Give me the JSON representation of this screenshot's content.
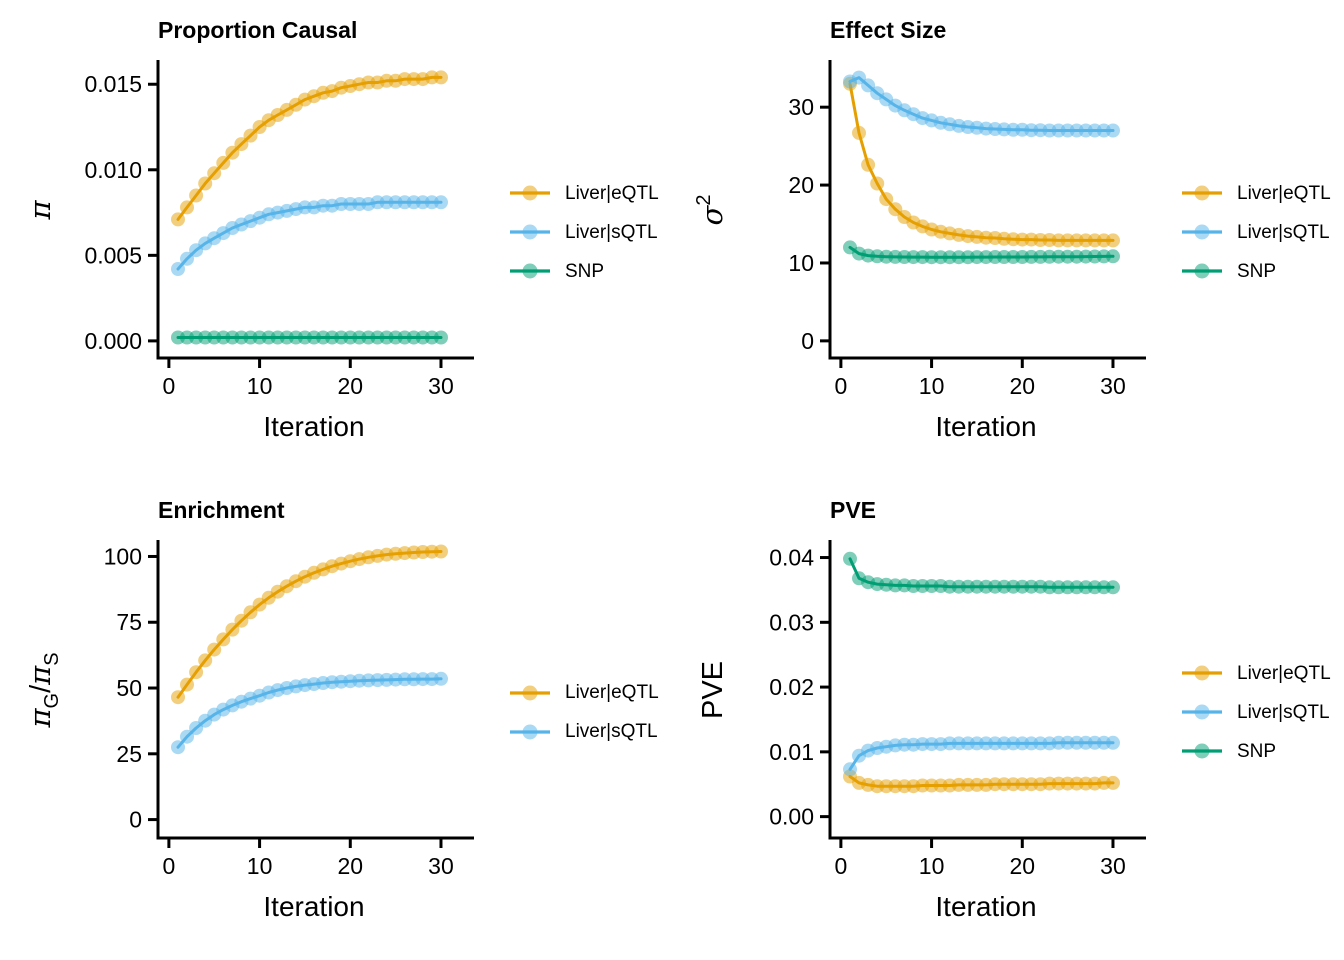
{
  "figure_background": "#ffffff",
  "palette": {
    "liver_eqtl": "#E69F00",
    "liver_sqtl": "#56B4E9",
    "snp": "#009E73",
    "axis": "#000000"
  },
  "marker": {
    "radius": 7,
    "fill_opacity": 0.5,
    "line_width": 3
  },
  "chart_data": [
    {
      "type": "line",
      "title": "Proportion Causal",
      "xlabel": "Iteration",
      "ylabel": "π",
      "ylabel_rich": [
        {
          "t": "π",
          "k": "it"
        }
      ],
      "x": [
        1,
        2,
        3,
        4,
        5,
        6,
        7,
        8,
        9,
        10,
        11,
        12,
        13,
        14,
        15,
        16,
        17,
        18,
        19,
        20,
        21,
        22,
        23,
        24,
        25,
        26,
        27,
        28,
        29,
        30
      ],
      "xticks": [
        0,
        10,
        20,
        30
      ],
      "xtick_labels": [
        "0",
        "10",
        "20",
        "30"
      ],
      "xlim": [
        -1.2,
        33.2
      ],
      "yticks": [
        0,
        0.005,
        0.01,
        0.015
      ],
      "ytick_labels": [
        "0.000",
        "0.005",
        "0.010",
        "0.015"
      ],
      "ylim": [
        -0.001,
        0.0163
      ],
      "grid": false,
      "legend_position": "right",
      "series": [
        {
          "name": "Liver|eQTL",
          "color": "#E69F00",
          "values": [
            0.0071,
            0.0078,
            0.0085,
            0.0092,
            0.0098,
            0.0104,
            0.011,
            0.0115,
            0.012,
            0.0125,
            0.0129,
            0.0132,
            0.0135,
            0.0138,
            0.0141,
            0.0143,
            0.0145,
            0.0146,
            0.0148,
            0.0149,
            0.015,
            0.0151,
            0.0151,
            0.0152,
            0.0152,
            0.0153,
            0.0153,
            0.0153,
            0.0154,
            0.0154
          ]
        },
        {
          "name": "Liver|sQTL",
          "color": "#56B4E9",
          "values": [
            0.0042,
            0.0048,
            0.0053,
            0.0057,
            0.006,
            0.0063,
            0.0066,
            0.0068,
            0.007,
            0.0072,
            0.0074,
            0.0075,
            0.0076,
            0.0077,
            0.0078,
            0.0078,
            0.0079,
            0.0079,
            0.008,
            0.008,
            0.008,
            0.008,
            0.0081,
            0.0081,
            0.0081,
            0.0081,
            0.0081,
            0.0081,
            0.0081,
            0.0081
          ]
        },
        {
          "name": "SNP",
          "color": "#009E73",
          "values": [
            0.0002,
            0.0002,
            0.0002,
            0.0002,
            0.0002,
            0.0002,
            0.0002,
            0.0002,
            0.0002,
            0.0002,
            0.0002,
            0.0002,
            0.0002,
            0.0002,
            0.0002,
            0.0002,
            0.0002,
            0.0002,
            0.0002,
            0.0002,
            0.0002,
            0.0002,
            0.0002,
            0.0002,
            0.0002,
            0.0002,
            0.0002,
            0.0002,
            0.0002,
            0.0002
          ]
        }
      ]
    },
    {
      "type": "line",
      "title": "Effect Size",
      "xlabel": "Iteration",
      "ylabel": "σ2",
      "ylabel_rich": [
        {
          "t": "σ",
          "k": "it"
        },
        {
          "t": "2",
          "k": "sup"
        }
      ],
      "x": [
        1,
        2,
        3,
        4,
        5,
        6,
        7,
        8,
        9,
        10,
        11,
        12,
        13,
        14,
        15,
        16,
        17,
        18,
        19,
        20,
        21,
        22,
        23,
        24,
        25,
        26,
        27,
        28,
        29,
        30
      ],
      "xticks": [
        0,
        10,
        20,
        30
      ],
      "xtick_labels": [
        "0",
        "10",
        "20",
        "30"
      ],
      "xlim": [
        -1.2,
        33.2
      ],
      "yticks": [
        0,
        10,
        20,
        30
      ],
      "ytick_labels": [
        "0",
        "10",
        "20",
        "30"
      ],
      "ylim": [
        -2.2,
        35.8
      ],
      "grid": false,
      "legend_position": "right",
      "series": [
        {
          "name": "Liver|eQTL",
          "color": "#E69F00",
          "values": [
            33.0,
            26.7,
            22.6,
            20.2,
            18.2,
            16.9,
            15.9,
            15.2,
            14.7,
            14.3,
            14.0,
            13.8,
            13.6,
            13.45,
            13.35,
            13.25,
            13.2,
            13.1,
            13.05,
            13.0,
            13.0,
            12.95,
            12.95,
            12.9,
            12.9,
            12.9,
            12.9,
            12.9,
            12.9,
            12.9
          ]
        },
        {
          "name": "Liver|sQTL",
          "color": "#56B4E9",
          "values": [
            33.3,
            33.8,
            32.8,
            31.8,
            31.0,
            30.2,
            29.6,
            29.1,
            28.6,
            28.3,
            28.0,
            27.8,
            27.6,
            27.45,
            27.35,
            27.25,
            27.2,
            27.15,
            27.1,
            27.1,
            27.05,
            27.05,
            27.0,
            27.0,
            27.0,
            27.0,
            27.0,
            27.0,
            27.0,
            27.0
          ]
        },
        {
          "name": "SNP",
          "color": "#009E73",
          "values": [
            12.0,
            11.2,
            10.95,
            10.85,
            10.8,
            10.78,
            10.76,
            10.75,
            10.75,
            10.74,
            10.74,
            10.74,
            10.74,
            10.74,
            10.75,
            10.75,
            10.76,
            10.76,
            10.77,
            10.77,
            10.78,
            10.78,
            10.79,
            10.8,
            10.8,
            10.81,
            10.82,
            10.83,
            10.84,
            10.85
          ]
        }
      ]
    },
    {
      "type": "line",
      "title": "Enrichment",
      "xlabel": "Iteration",
      "ylabel": "πG/πS",
      "ylabel_rich": [
        {
          "t": "π",
          "k": "it"
        },
        {
          "t": "G",
          "k": "sub"
        },
        {
          "t": "/",
          "k": "n"
        },
        {
          "t": "π",
          "k": "it"
        },
        {
          "t": "S",
          "k": "sub"
        }
      ],
      "x": [
        1,
        2,
        3,
        4,
        5,
        6,
        7,
        8,
        9,
        10,
        11,
        12,
        13,
        14,
        15,
        16,
        17,
        18,
        19,
        20,
        21,
        22,
        23,
        24,
        25,
        26,
        27,
        28,
        29,
        30
      ],
      "xticks": [
        0,
        10,
        20,
        30
      ],
      "xtick_labels": [
        "0",
        "10",
        "20",
        "30"
      ],
      "xlim": [
        -1.2,
        33.2
      ],
      "yticks": [
        0,
        25,
        50,
        75,
        100
      ],
      "ytick_labels": [
        "0",
        "25",
        "50",
        "75",
        "100"
      ],
      "ylim": [
        -7,
        105.5
      ],
      "grid": false,
      "legend_position": "right",
      "series": [
        {
          "name": "Liver|eQTL",
          "color": "#E69F00",
          "values": [
            46.5,
            51.3,
            56.0,
            60.5,
            64.6,
            68.5,
            72.2,
            75.6,
            78.8,
            81.7,
            84.3,
            86.6,
            88.7,
            90.6,
            92.3,
            93.8,
            95.1,
            96.3,
            97.3,
            98.2,
            99.0,
            99.7,
            100.2,
            100.7,
            101.0,
            101.3,
            101.5,
            101.7,
            101.8,
            101.9
          ]
        },
        {
          "name": "Liver|sQTL",
          "color": "#56B4E9",
          "values": [
            27.5,
            31.5,
            34.8,
            37.6,
            39.9,
            41.8,
            43.4,
            44.8,
            46.0,
            47.1,
            48.3,
            49.2,
            50.0,
            50.6,
            51.1,
            51.5,
            51.9,
            52.2,
            52.4,
            52.6,
            52.8,
            52.9,
            53.0,
            53.1,
            53.2,
            53.3,
            53.3,
            53.4,
            53.4,
            53.5
          ]
        }
      ]
    },
    {
      "type": "line",
      "title": "PVE",
      "xlabel": "Iteration",
      "ylabel": "PVE",
      "ylabel_rich": [
        {
          "t": "PVE",
          "k": "n"
        }
      ],
      "x": [
        1,
        2,
        3,
        4,
        5,
        6,
        7,
        8,
        9,
        10,
        11,
        12,
        13,
        14,
        15,
        16,
        17,
        18,
        19,
        20,
        21,
        22,
        23,
        24,
        25,
        26,
        27,
        28,
        29,
        30
      ],
      "xticks": [
        0,
        10,
        20,
        30
      ],
      "xtick_labels": [
        "0",
        "10",
        "20",
        "30"
      ],
      "xlim": [
        -1.2,
        33.2
      ],
      "yticks": [
        0,
        0.01,
        0.02,
        0.03,
        0.04
      ],
      "ytick_labels": [
        "0.00",
        "0.01",
        "0.02",
        "0.03",
        "0.04"
      ],
      "ylim": [
        -0.0033,
        0.0424
      ],
      "grid": false,
      "legend_position": "right",
      "series": [
        {
          "name": "Liver|eQTL",
          "color": "#E69F00",
          "values": [
            0.0062,
            0.0052,
            0.0049,
            0.0047,
            0.0047,
            0.0047,
            0.0047,
            0.0047,
            0.0048,
            0.0048,
            0.0048,
            0.0048,
            0.0049,
            0.0049,
            0.0049,
            0.0049,
            0.005,
            0.005,
            0.005,
            0.005,
            0.005,
            0.005,
            0.0051,
            0.0051,
            0.0051,
            0.0051,
            0.0051,
            0.0051,
            0.0052,
            0.0052
          ]
        },
        {
          "name": "Liver|sQTL",
          "color": "#56B4E9",
          "values": [
            0.0073,
            0.0094,
            0.0102,
            0.0106,
            0.0108,
            0.011,
            0.0111,
            0.0111,
            0.0112,
            0.0112,
            0.0112,
            0.0113,
            0.0113,
            0.0113,
            0.0113,
            0.0113,
            0.0113,
            0.0113,
            0.0113,
            0.0113,
            0.0113,
            0.0113,
            0.0113,
            0.0114,
            0.0114,
            0.0114,
            0.0114,
            0.0114,
            0.0114,
            0.0114
          ]
        },
        {
          "name": "SNP",
          "color": "#009E73",
          "values": [
            0.0398,
            0.0368,
            0.0362,
            0.0359,
            0.0358,
            0.0357,
            0.0357,
            0.0356,
            0.0356,
            0.0356,
            0.0356,
            0.0355,
            0.0355,
            0.0355,
            0.0355,
            0.0355,
            0.0355,
            0.0355,
            0.0355,
            0.0355,
            0.0355,
            0.0355,
            0.0354,
            0.0354,
            0.0354,
            0.0354,
            0.0354,
            0.0354,
            0.0354,
            0.0354
          ]
        }
      ]
    }
  ]
}
